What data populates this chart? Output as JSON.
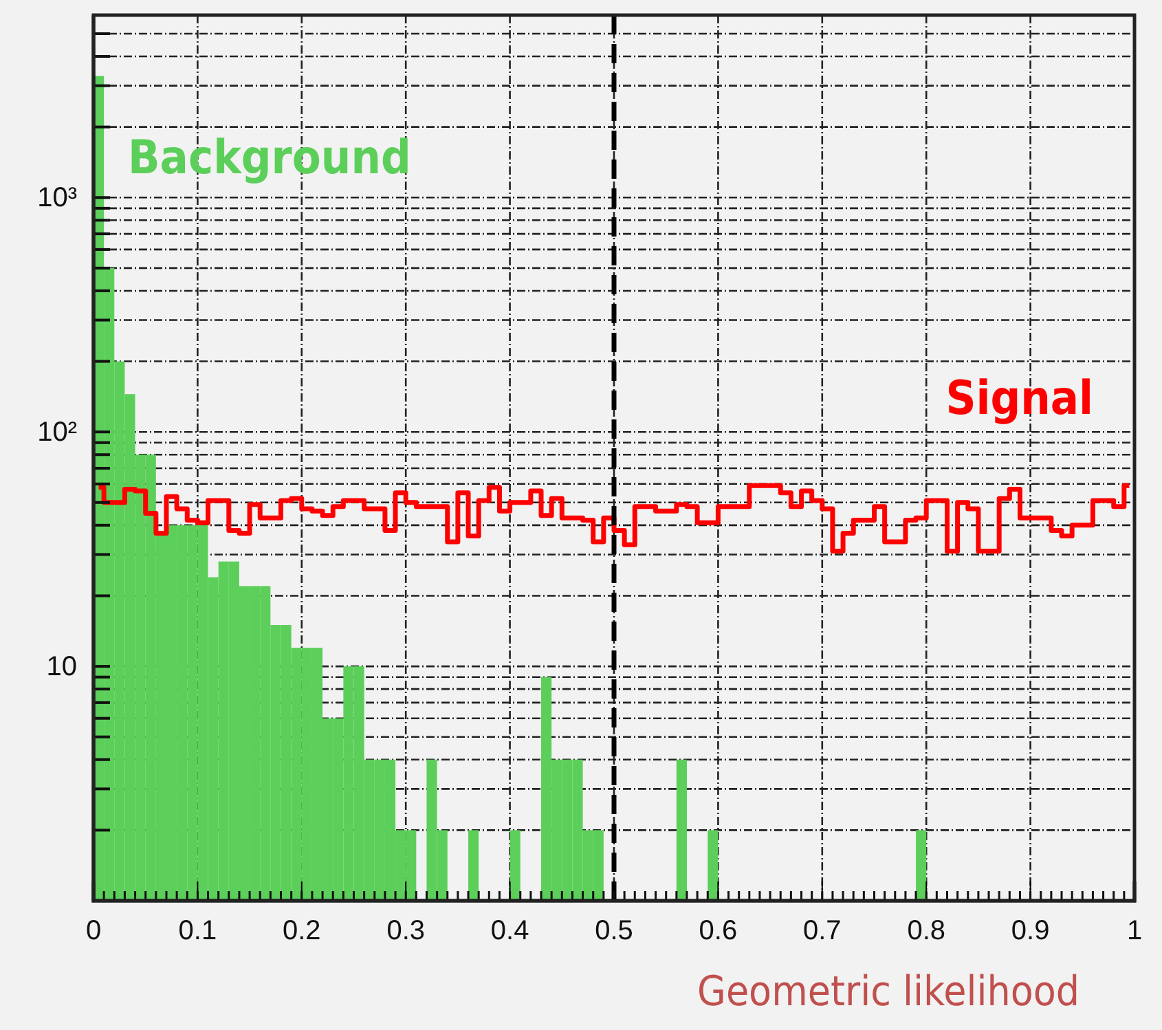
{
  "chart_data": {
    "type": "histogram",
    "xlabel": "Geometric likelihood",
    "bins": [
      0,
      0.01,
      0.02,
      0.03,
      0.04,
      0.05,
      0.06,
      0.07,
      0.08,
      0.09,
      0.1,
      0.11,
      0.12,
      0.13,
      0.14,
      0.15,
      0.16,
      0.17,
      0.18,
      0.19,
      0.2,
      0.21,
      0.22,
      0.23,
      0.24,
      0.25,
      0.26,
      0.27,
      0.28,
      0.29,
      0.3,
      0.31,
      0.32,
      0.33,
      0.34,
      0.35,
      0.36,
      0.37,
      0.38,
      0.39,
      0.4,
      0.41,
      0.42,
      0.43,
      0.44,
      0.45,
      0.46,
      0.47,
      0.48,
      0.49,
      0.5,
      0.51,
      0.52,
      0.53,
      0.54,
      0.55,
      0.56,
      0.57,
      0.58,
      0.59,
      0.6,
      0.61,
      0.62,
      0.63,
      0.64,
      0.65,
      0.66,
      0.67,
      0.68,
      0.69,
      0.7,
      0.71,
      0.72,
      0.73,
      0.74,
      0.75,
      0.76,
      0.77,
      0.78,
      0.79,
      0.8,
      0.81,
      0.82,
      0.83,
      0.84,
      0.85,
      0.86,
      0.87,
      0.88,
      0.89,
      0.9,
      0.91,
      0.92,
      0.93,
      0.94,
      0.95,
      0.96,
      0.97,
      0.98,
      0.99,
      1
    ],
    "series": [
      {
        "name": "Background",
        "color": "#5ccf5a",
        "values": [
          3300,
          500,
          200,
          145,
          80,
          80,
          37,
          40,
          40,
          40,
          40,
          24,
          28,
          28,
          22,
          22,
          22,
          15,
          15,
          12,
          12,
          12,
          6,
          6,
          10,
          10,
          4,
          4,
          4,
          2,
          2,
          null,
          4,
          2,
          null,
          null,
          2,
          null,
          null,
          null,
          2,
          null,
          null,
          9,
          4,
          4,
          4,
          2,
          2,
          null,
          null,
          null,
          null,
          null,
          null,
          null,
          4,
          null,
          null,
          2,
          null,
          null,
          null,
          null,
          null,
          null,
          null,
          null,
          null,
          null,
          null,
          null,
          null,
          null,
          null,
          null,
          null,
          null,
          null,
          2,
          null,
          null,
          null,
          null,
          null,
          null,
          null,
          null,
          null,
          null,
          null,
          null,
          null,
          null,
          null,
          null,
          null,
          null,
          null,
          null
        ]
      },
      {
        "name": "Signal",
        "type": "step",
        "color": "#ff0000",
        "x": [
          0.005,
          0.015,
          0.025,
          0.035,
          0.045,
          0.055,
          0.065,
          0.075,
          0.085,
          0.095,
          0.105,
          0.115,
          0.125,
          0.135,
          0.145,
          0.155,
          0.165,
          0.175,
          0.185,
          0.195,
          0.205,
          0.215,
          0.225,
          0.235,
          0.245,
          0.255,
          0.265,
          0.275,
          0.285,
          0.295,
          0.305,
          0.315,
          0.325,
          0.335,
          0.345,
          0.355,
          0.365,
          0.375,
          0.385,
          0.395,
          0.405,
          0.415,
          0.425,
          0.435,
          0.445,
          0.455,
          0.465,
          0.475,
          0.485,
          0.495,
          0.505,
          0.515,
          0.525,
          0.535,
          0.545,
          0.555,
          0.565,
          0.575,
          0.585,
          0.595,
          0.605,
          0.615,
          0.625,
          0.635,
          0.645,
          0.655,
          0.665,
          0.675,
          0.685,
          0.695,
          0.705,
          0.715,
          0.725,
          0.735,
          0.745,
          0.755,
          0.765,
          0.775,
          0.785,
          0.795,
          0.805,
          0.815,
          0.825,
          0.835,
          0.845,
          0.855,
          0.865,
          0.875,
          0.885,
          0.895,
          0.905,
          0.915,
          0.925,
          0.935,
          0.945,
          0.955,
          0.965,
          0.975,
          0.985,
          0.995
        ],
        "values": [
          58,
          50,
          50,
          57,
          56,
          45,
          37,
          53,
          47,
          42,
          41,
          51,
          51,
          38,
          37,
          49,
          43,
          43,
          51,
          52,
          47,
          46,
          44,
          48,
          51,
          51,
          47,
          47,
          38,
          55,
          50,
          48,
          48,
          48,
          34,
          55,
          36,
          51,
          58,
          46,
          50,
          50,
          56,
          44,
          52,
          43,
          43,
          42,
          34,
          43,
          38,
          33,
          48,
          48,
          46,
          46,
          49,
          48,
          41,
          41,
          48,
          48,
          48,
          59,
          59,
          59,
          55,
          48,
          56,
          51,
          47,
          31,
          37,
          42,
          42,
          48,
          34,
          34,
          42,
          43,
          51,
          51,
          31,
          50,
          47,
          31,
          31,
          52,
          57,
          43,
          43,
          43,
          38,
          36,
          40,
          40,
          51,
          51,
          48,
          59
        ]
      }
    ],
    "xlim": [
      0,
      1
    ],
    "xticks": [
      0,
      0.1,
      0.2,
      0.3,
      0.4,
      0.5,
      0.6,
      0.7,
      0.8,
      0.9,
      1
    ],
    "log": true,
    "ylim": [
      1,
      6000
    ],
    "yticks": [
      {
        "value": 2,
        "label": null
      },
      {
        "value": 3,
        "label": null
      },
      {
        "value": 4,
        "label": null
      },
      {
        "value": 5,
        "label": null
      },
      {
        "value": 6,
        "label": null
      },
      {
        "value": 7,
        "label": null
      },
      {
        "value": 8,
        "label": null
      },
      {
        "value": 9,
        "label": null
      },
      10,
      {
        "value": 20,
        "label": null
      },
      {
        "value": 30,
        "label": null
      },
      {
        "value": 40,
        "label": null
      },
      {
        "value": 50,
        "label": null
      },
      {
        "value": 60,
        "label": null
      },
      {
        "value": 70,
        "label": null
      },
      {
        "value": 80,
        "label": null
      },
      {
        "value": 90,
        "label": null
      },
      {
        "value": 100,
        "label": "10²"
      },
      {
        "value": 200,
        "label": null
      },
      {
        "value": 300,
        "label": null
      },
      {
        "value": 400,
        "label": null
      },
      {
        "value": 500,
        "label": null
      },
      {
        "value": 600,
        "label": null
      },
      {
        "value": 700,
        "label": null
      },
      {
        "value": 800,
        "label": null
      },
      {
        "value": 900,
        "label": null
      },
      {
        "value": 1000,
        "label": "10³"
      },
      {
        "value": 2000,
        "label": null
      },
      {
        "value": 3000,
        "label": null
      },
      {
        "value": 4000,
        "label": null
      },
      {
        "value": 5000,
        "label": null
      }
    ],
    "grid": true,
    "legend": false,
    "ref_lines": [
      {
        "axis": "x",
        "value": 0.5,
        "color": "#000000",
        "line_style": "dashed"
      }
    ]
  }
}
